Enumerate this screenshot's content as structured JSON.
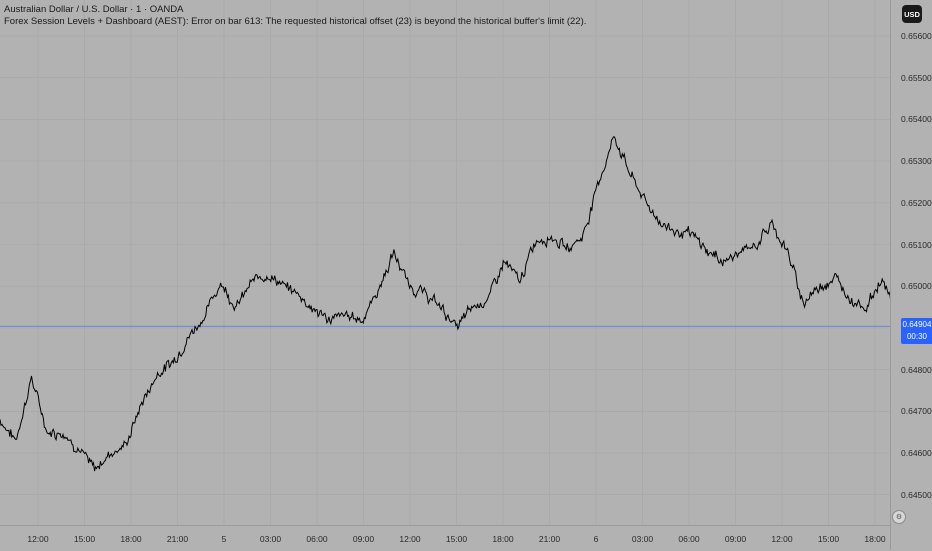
{
  "chart_data": {
    "type": "line",
    "title": "Australian Dollar / U.S. Dollar · 1 · OANDA",
    "subtitle": "Forex Session Levels + Dashboard (AEST): Error on bar 613: The requested historical offset (23) is beyond the historical buffer's limit (22).",
    "currency": "USD",
    "ylim": [
      0.6445,
      0.6561
    ],
    "yticks": [
      "0.65600",
      "0.65500",
      "0.65400",
      "0.65300",
      "0.65200",
      "0.65100",
      "0.65000",
      "0.64900",
      "0.64800",
      "0.64700",
      "0.64600",
      "0.64500"
    ],
    "xticks": [
      "12:00",
      "15:00",
      "18:00",
      "21:00",
      "5",
      "03:00",
      "06:00",
      "09:00",
      "12:00",
      "15:00",
      "18:00",
      "21:00",
      "6",
      "03:00",
      "06:00",
      "09:00",
      "12:00",
      "15:00",
      "18:00"
    ],
    "current_price": "0.64904",
    "countdown": "00:30",
    "grid": true,
    "series": [
      {
        "x": [
          "10:00",
          "11:00",
          "12:00",
          "13:00",
          "14:00",
          "15:00",
          "16:00",
          "17:00",
          "18:00",
          "19:00",
          "20:00",
          "21:00",
          "22:00",
          "23:00",
          "00:00",
          "01:00",
          "02:00",
          "03:00",
          "04:00",
          "05:00",
          "06:00",
          "07:00",
          "08:00",
          "09:00",
          "10:00",
          "11:00",
          "12:00",
          "13:00",
          "14:00",
          "15:00",
          "16:00",
          "17:00",
          "18:00",
          "19:00",
          "20:00",
          "21:00",
          "22:00",
          "23:00",
          "00:00",
          "01:00",
          "02:00",
          "03:00",
          "04:00",
          "05:00",
          "06:00",
          "07:00",
          "08:00",
          "09:00",
          "10:00",
          "11:00",
          "12:00",
          "13:00",
          "14:00",
          "15:00",
          "16:00",
          "17:00",
          "18:00",
          "19:00"
        ],
        "values": [
          0.6468,
          0.6463,
          0.6478,
          0.6465,
          0.6465,
          0.6461,
          0.6456,
          0.646,
          0.6462,
          0.6472,
          0.6479,
          0.6482,
          0.6488,
          0.6493,
          0.6501,
          0.6495,
          0.6501,
          0.6503,
          0.65,
          0.6498,
          0.6494,
          0.6492,
          0.6493,
          0.6492,
          0.6499,
          0.6508,
          0.65,
          0.6498,
          0.6495,
          0.649,
          0.6495,
          0.6497,
          0.6506,
          0.6501,
          0.6511,
          0.6512,
          0.6509,
          0.6512,
          0.6525,
          0.6536,
          0.6527,
          0.652,
          0.6515,
          0.6513,
          0.6512,
          0.6508,
          0.6506,
          0.6508,
          0.651,
          0.6515,
          0.6508,
          0.6496,
          0.65,
          0.6502,
          0.6497,
          0.6495,
          0.6502,
          0.6491
        ]
      }
    ]
  }
}
